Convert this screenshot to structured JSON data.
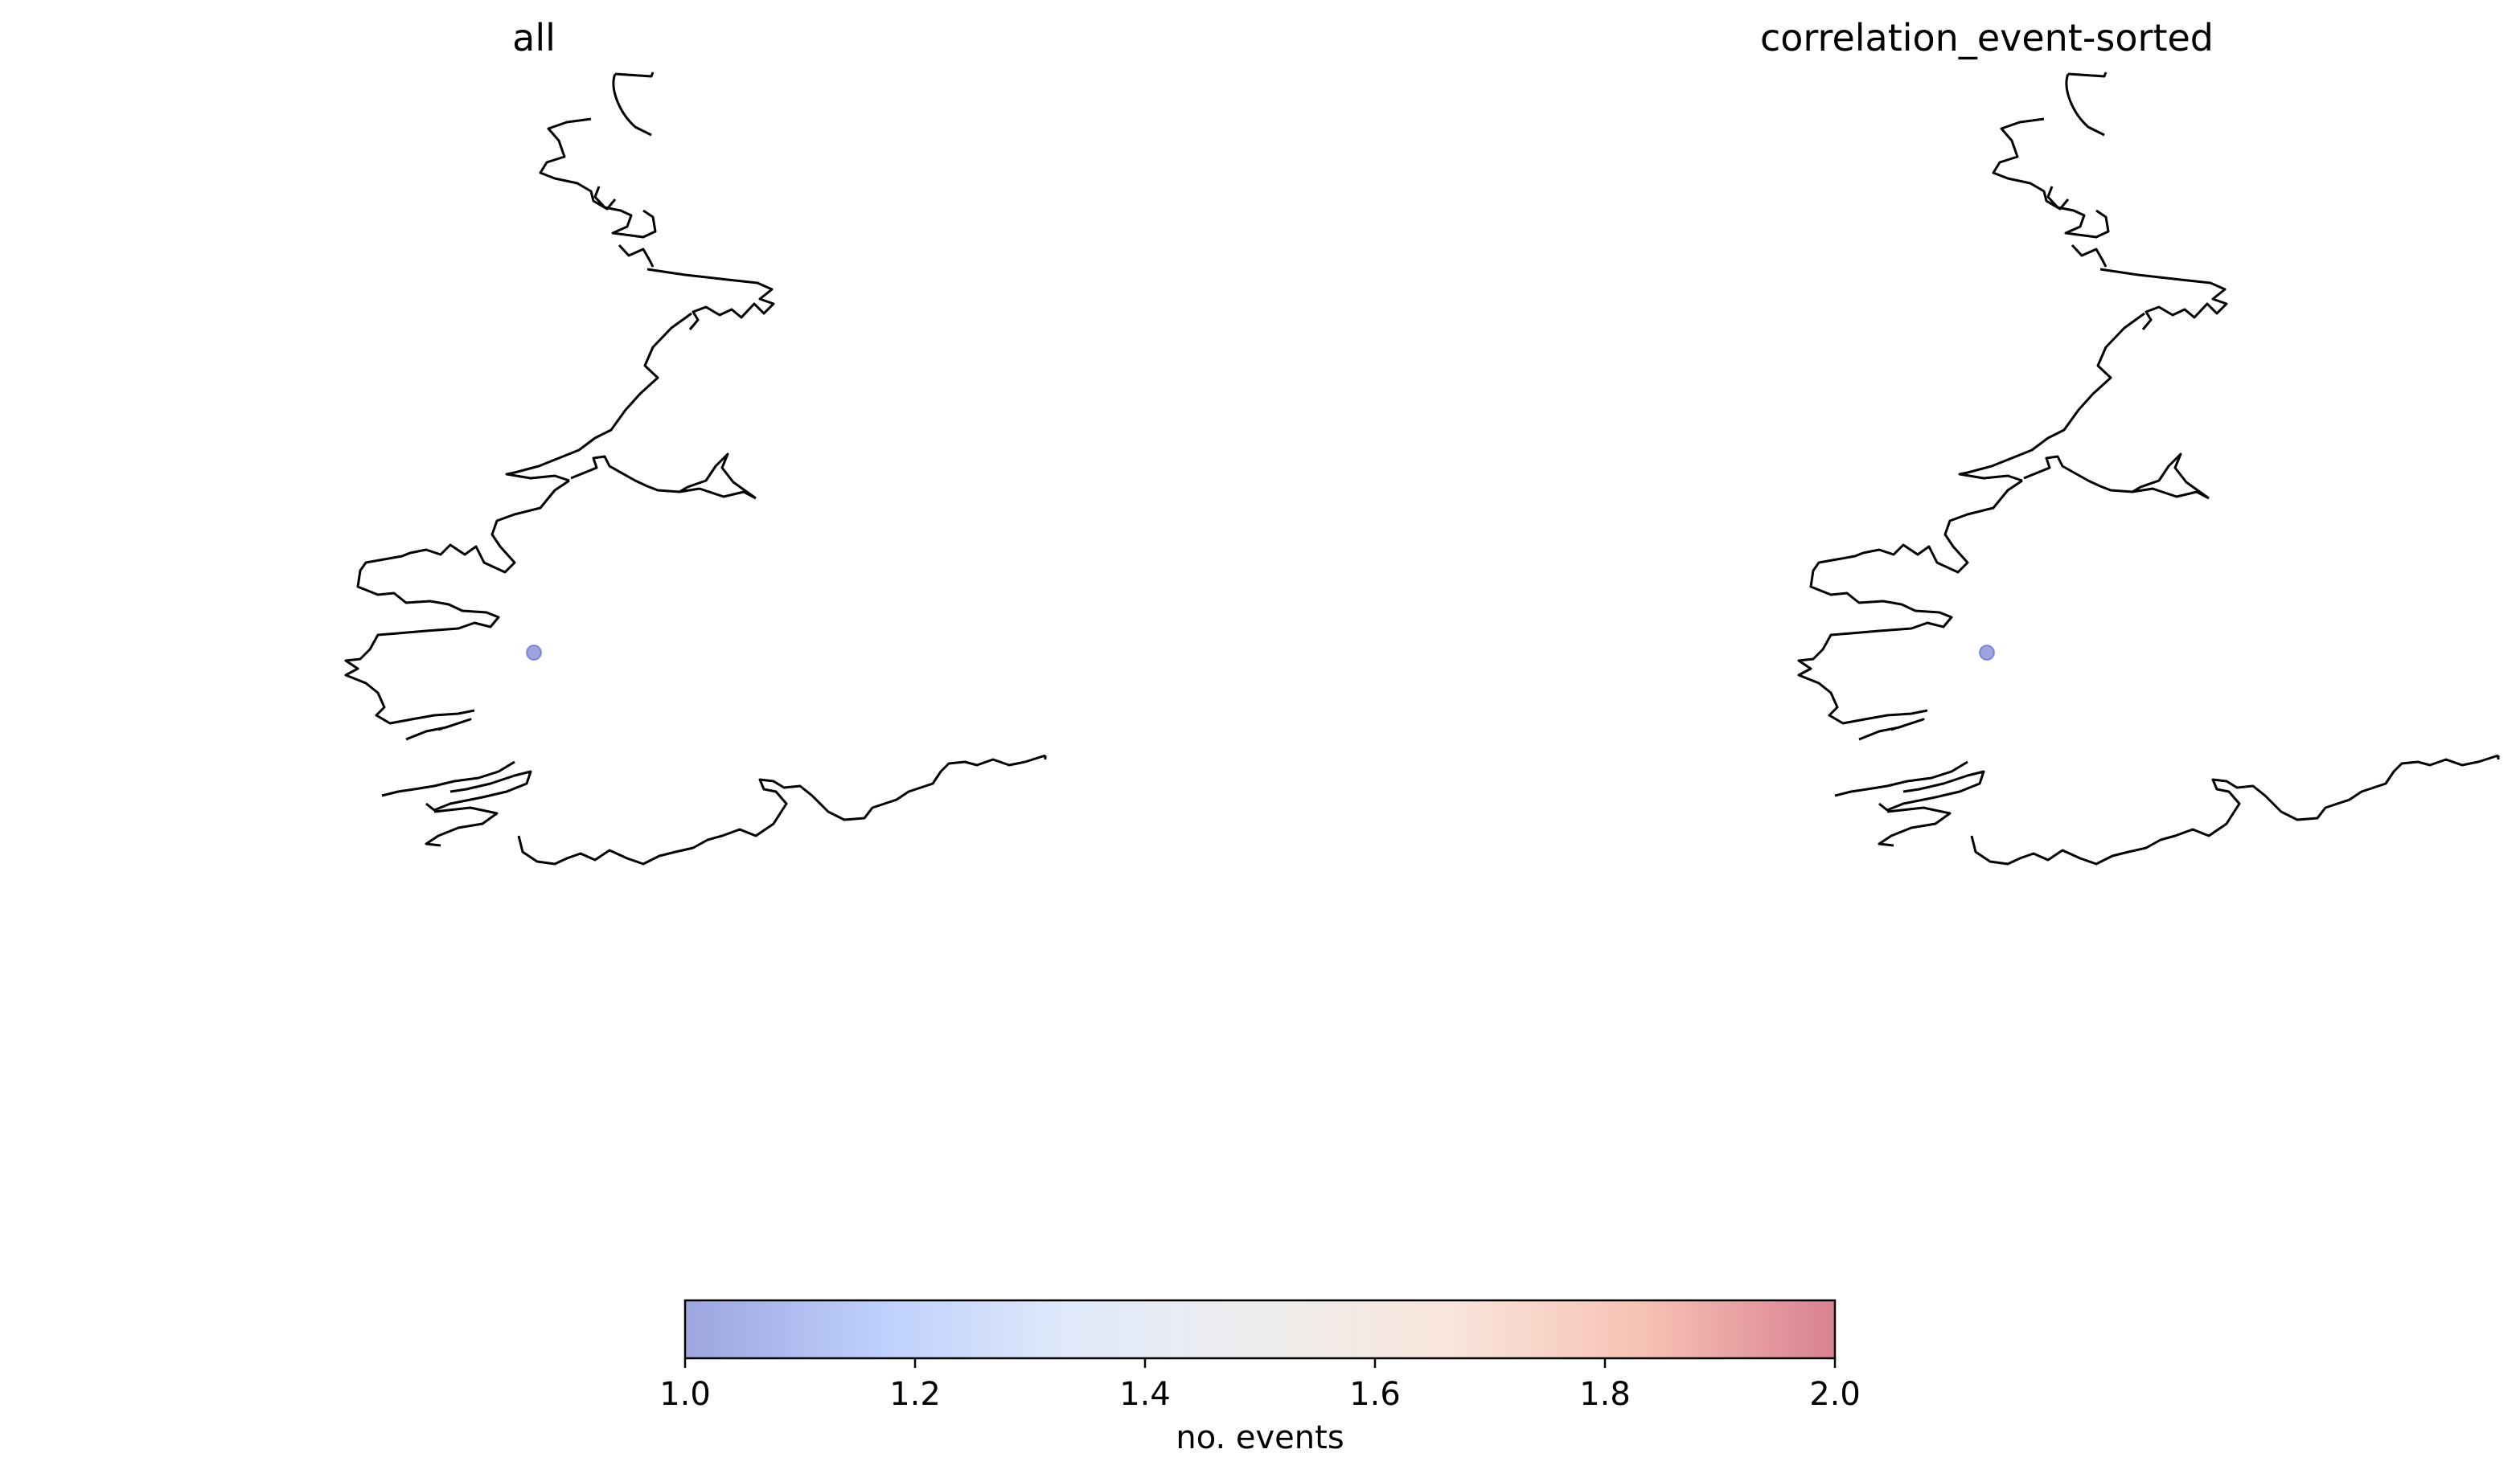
{
  "chart_data": {
    "type": "scatter",
    "panels": [
      {
        "title": "all",
        "points": [
          {
            "value": 1
          }
        ]
      },
      {
        "title": "correlation_event-sorted",
        "points": [
          {
            "value": 1
          }
        ]
      }
    ],
    "colorbar": {
      "label": "no. events",
      "range": [
        1.0,
        2.0
      ],
      "ticks": [
        "1.0",
        "1.2",
        "1.4",
        "1.6",
        "1.8",
        "2.0"
      ],
      "colormap": "coolwarm",
      "stops": [
        "#3b4cc0",
        "#7b9ff9",
        "#c0d4f5",
        "#dddcdc",
        "#f2cbb7",
        "#ee8468",
        "#b40426"
      ],
      "alpha": 0.5
    },
    "grid": false
  }
}
